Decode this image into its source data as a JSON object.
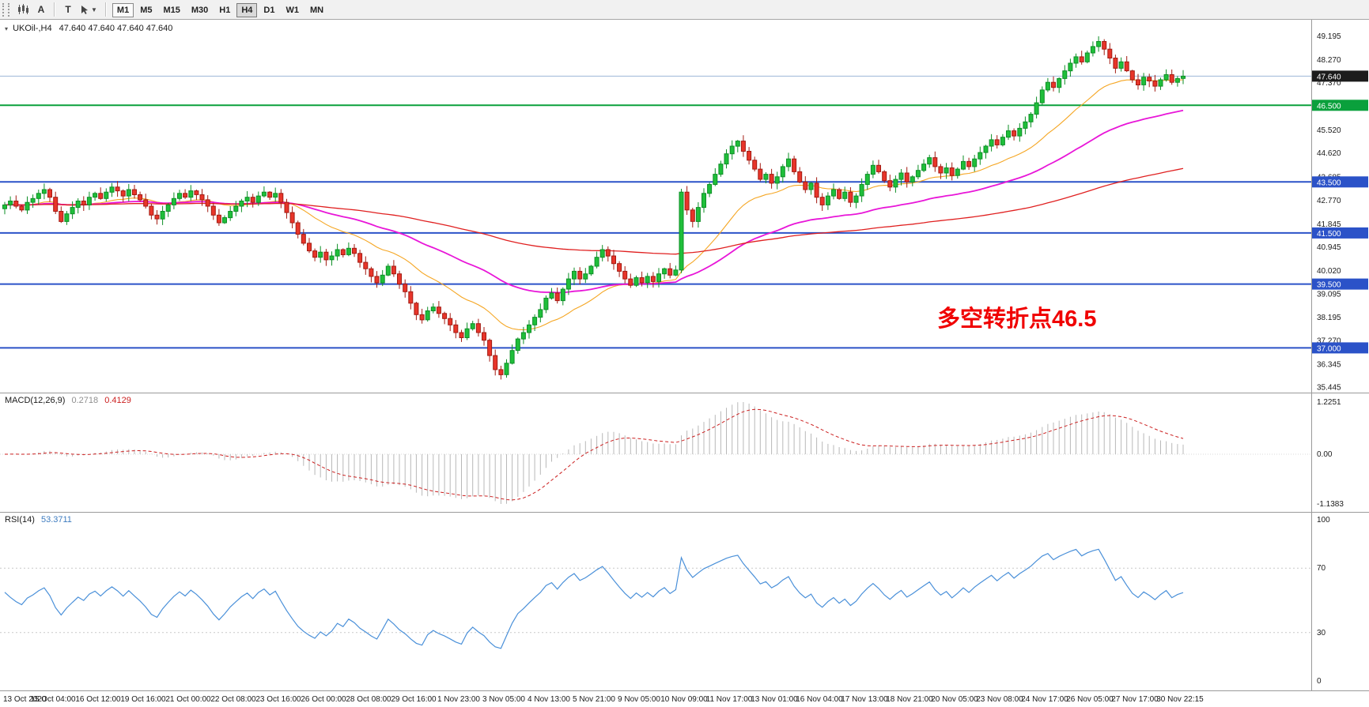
{
  "toolbar": {
    "tools": {
      "a_label": "A",
      "t_label": "T"
    },
    "timeframes": [
      {
        "label": "M1",
        "boxed": true
      },
      {
        "label": "M5"
      },
      {
        "label": "M15"
      },
      {
        "label": "M30"
      },
      {
        "label": "H1"
      },
      {
        "label": "H4",
        "active": true
      },
      {
        "label": "D1"
      },
      {
        "label": "W1"
      },
      {
        "label": "MN"
      }
    ]
  },
  "symbol_header": {
    "symbol": "UKOil-,H4",
    "ohlc": "47.640 47.640 47.640 47.640"
  },
  "annotation": {
    "text": "多空转折点46.5",
    "color": "#f00000"
  },
  "chart_data": {
    "type": "candlestick",
    "symbol": "UKOil-",
    "timeframe": "H4",
    "price_range": {
      "min": 35.25,
      "max": 49.85
    },
    "first_open": 42.45,
    "closes": [
      42.6,
      42.75,
      42.55,
      42.4,
      42.7,
      42.85,
      43.05,
      43.2,
      42.9,
      42.35,
      41.95,
      42.25,
      42.5,
      42.75,
      42.6,
      42.9,
      43.05,
      42.85,
      43.1,
      43.3,
      43.15,
      42.95,
      43.2,
      43.0,
      42.8,
      42.55,
      42.2,
      42.05,
      42.35,
      42.6,
      42.85,
      43.05,
      42.9,
      43.15,
      43.0,
      42.8,
      42.55,
      42.2,
      41.9,
      42.1,
      42.35,
      42.55,
      42.75,
      42.9,
      42.7,
      42.95,
      43.1,
      42.9,
      43.05,
      42.7,
      42.3,
      41.9,
      41.45,
      41.1,
      40.8,
      40.55,
      40.75,
      40.45,
      40.6,
      40.85,
      40.65,
      40.9,
      40.7,
      40.35,
      40.1,
      39.8,
      39.55,
      39.85,
      40.2,
      39.9,
      39.5,
      39.2,
      38.75,
      38.3,
      38.1,
      38.45,
      38.6,
      38.35,
      38.15,
      37.9,
      37.6,
      37.4,
      37.75,
      37.95,
      37.6,
      37.3,
      36.7,
      36.15,
      35.95,
      36.4,
      36.9,
      37.35,
      37.6,
      37.9,
      38.2,
      38.5,
      38.95,
      39.15,
      38.85,
      39.3,
      39.7,
      40.0,
      39.7,
      39.9,
      40.2,
      40.55,
      40.85,
      40.6,
      40.3,
      40.0,
      39.7,
      39.45,
      39.75,
      39.55,
      39.8,
      39.6,
      39.9,
      40.1,
      39.85,
      40.05,
      43.1,
      42.4,
      41.95,
      42.5,
      43.05,
      43.4,
      43.8,
      44.2,
      44.6,
      44.9,
      45.1,
      44.7,
      44.35,
      44.0,
      43.6,
      43.8,
      43.45,
      43.7,
      44.1,
      44.4,
      43.9,
      43.5,
      43.2,
      43.45,
      42.9,
      42.6,
      42.95,
      43.2,
      42.85,
      43.1,
      42.7,
      42.95,
      43.4,
      43.8,
      44.15,
      43.9,
      43.55,
      43.3,
      43.6,
      43.85,
      43.5,
      43.7,
      43.95,
      44.2,
      44.45,
      44.1,
      43.85,
      44.05,
      43.75,
      44.0,
      44.3,
      44.1,
      44.4,
      44.65,
      44.9,
      45.15,
      44.95,
      45.25,
      45.5,
      45.3,
      45.6,
      45.85,
      46.15,
      46.6,
      47.1,
      47.4,
      47.2,
      47.55,
      47.85,
      48.15,
      48.4,
      48.2,
      48.55,
      48.8,
      49.0,
      48.7,
      48.35,
      47.95,
      48.2,
      47.85,
      47.5,
      47.3,
      47.6,
      47.45,
      47.25,
      47.5,
      47.7,
      47.4,
      47.55,
      47.64
    ],
    "moving_averages": [
      {
        "name": "ma-fast",
        "period": 21,
        "color": "#f5a623",
        "width": 1.1
      },
      {
        "name": "ma-medium",
        "period": 55,
        "color": "#e816d8",
        "width": 1.8
      },
      {
        "name": "ma-slow",
        "period": 160,
        "color": "#e02020",
        "width": 1.3
      }
    ],
    "hlines": [
      {
        "label": "46.500",
        "price": 46.5,
        "color": "#0aa03c"
      },
      {
        "label": "43.500",
        "price": 43.5,
        "color": "#2b52c8"
      },
      {
        "label": "41.500",
        "price": 41.5,
        "color": "#2b52c8"
      },
      {
        "label": "39.500",
        "price": 39.5,
        "color": "#2b52c8"
      },
      {
        "label": "37.000",
        "price": 37.0,
        "color": "#2b52c8"
      }
    ],
    "bid": {
      "label": "47.640",
      "price": 47.64,
      "tag_bg": "#1c1c1c",
      "line_color": "#9db6d8"
    },
    "price_ticks": [
      "49.195",
      "48.270",
      "47.370",
      "45.520",
      "44.620",
      "43.685",
      "42.770",
      "41.845",
      "40.945",
      "40.020",
      "39.095",
      "38.195",
      "37.270",
      "36.345",
      "35.445"
    ],
    "macd": {
      "label": "MACD(12,26,9)",
      "value_main": "0.2718",
      "value_signal": "0.4129",
      "fast": 12,
      "slow": 26,
      "signal": 9,
      "ticks": [
        "1.2251",
        "0.00",
        "-1.1383"
      ]
    },
    "rsi": {
      "label": "RSI(14)",
      "value": "53.3711",
      "period": 14,
      "ticks": [
        "100",
        "70",
        "30",
        "0"
      ],
      "levels": [
        70,
        30
      ]
    },
    "time_labels": [
      "13 Oct 2020",
      "15 Oct 04:00",
      "16 Oct 12:00",
      "19 Oct 16:00",
      "21 Oct 00:00",
      "22 Oct 08:00",
      "23 Oct 16:00",
      "26 Oct 00:00",
      "28 Oct 08:00",
      "29 Oct 16:00",
      "1 Nov 23:00",
      "3 Nov 05:00",
      "4 Nov 13:00",
      "5 Nov 21:00",
      "9 Nov 05:00",
      "10 Nov 09:00",
      "11 Nov 17:00",
      "13 Nov 01:00",
      "16 Nov 04:00",
      "17 Nov 13:00",
      "18 Nov 21:00",
      "20 Nov 05:00",
      "23 Nov 08:00",
      "24 Nov 17:00",
      "26 Nov 05:00",
      "27 Nov 17:00",
      "30 Nov 22:15"
    ],
    "colors": {
      "up": "#1fbf3a",
      "up_border": "#0e8f26",
      "down": "#e8352a",
      "down_border": "#a31b12",
      "macd_hist": "#b8b8b8",
      "macd_signal": "#cc2020",
      "rsi_line": "#4a90d9",
      "grid_level": "#c8c8c8",
      "separator": "#9a9a9a",
      "axis_text": "#1a1a1a"
    }
  }
}
